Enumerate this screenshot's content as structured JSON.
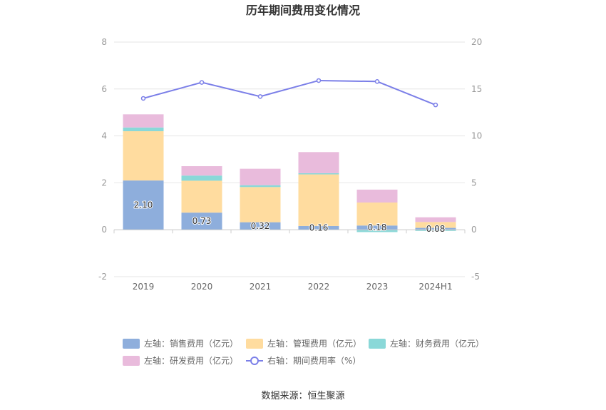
{
  "chart_data": {
    "type": "bar",
    "title": "历年期间费用变化情况",
    "categories": [
      "2019",
      "2020",
      "2021",
      "2022",
      "2023",
      "2024H1"
    ],
    "series": [
      {
        "name": "左轴：销售费用（亿元）",
        "axis": "left",
        "values": [
          2.1,
          0.73,
          0.32,
          0.16,
          0.18,
          0.08
        ],
        "color": "#8eaedc",
        "labels": [
          "2.10",
          "0.73",
          "0.32",
          "0.16",
          "0.18",
          "0.08"
        ]
      },
      {
        "name": "左轴：管理费用（亿元）",
        "axis": "left",
        "values": [
          2.1,
          1.36,
          1.5,
          2.2,
          0.98,
          0.25
        ],
        "color": "#ffdc9f"
      },
      {
        "name": "左轴：财务费用（亿元）",
        "axis": "left",
        "values": [
          0.16,
          0.22,
          0.08,
          0.05,
          -0.1,
          -0.05
        ],
        "color": "#8ad8d8"
      },
      {
        "name": "左轴：研发费用（亿元）",
        "axis": "left",
        "values": [
          0.56,
          0.4,
          0.7,
          0.9,
          0.55,
          0.2
        ],
        "color": "#e9bbdc"
      }
    ],
    "line": {
      "name": "右轴：期间费用率（%）",
      "axis": "right",
      "values": [
        14.0,
        15.7,
        14.2,
        15.9,
        15.8,
        13.3
      ],
      "color": "#7b7fe8"
    },
    "ylim_left": [
      -2,
      8
    ],
    "yticks_left": [
      "-2",
      "0",
      "2",
      "4",
      "6",
      "8"
    ],
    "ylim_right": [
      -5,
      20
    ],
    "yticks_right": [
      "-5",
      "0",
      "5",
      "10",
      "15",
      "20"
    ],
    "grid": true,
    "legend_position": "bottom"
  },
  "source": "数据来源：恒生聚源"
}
